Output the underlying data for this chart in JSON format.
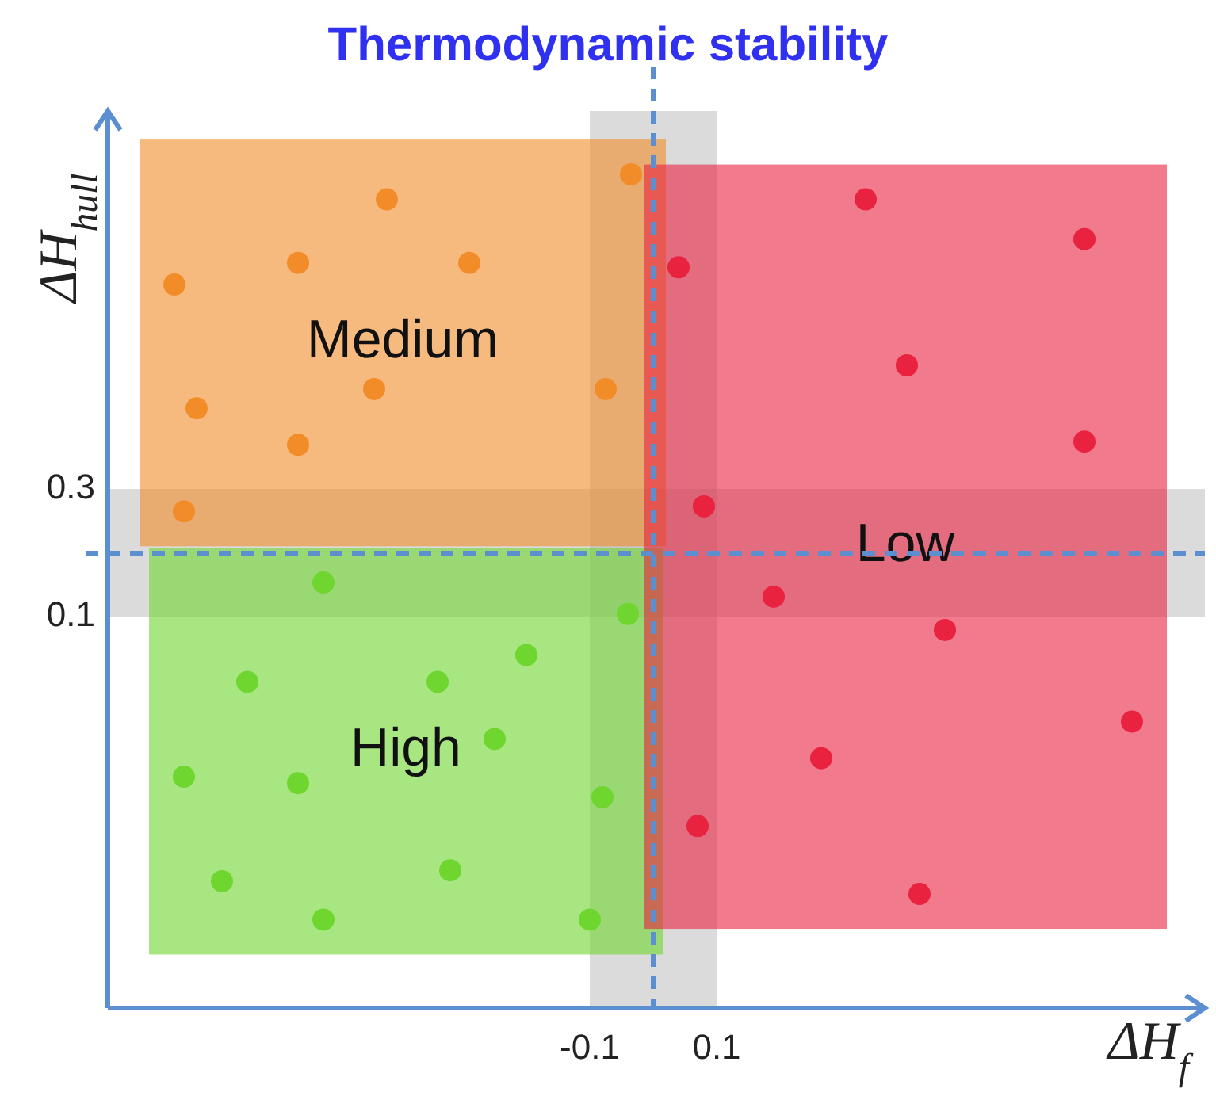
{
  "chart_data": {
    "type": "scatter",
    "title": "Thermodynamic stability",
    "xlabel": "ΔH$_{f}$",
    "ylabel": "ΔH$_{hull}$",
    "xlim": [
      -0.86,
      0.87
    ],
    "ylim": [
      -0.51,
      0.89
    ],
    "xticks": [
      -0.1,
      0.1
    ],
    "yticks": [
      0.3,
      0.1
    ],
    "grid": false,
    "marker": "circle",
    "series": [
      {
        "name": "Medium",
        "color": "#f28c28",
        "x": [
          -0.42,
          -0.56,
          -0.29,
          -0.755,
          -0.035,
          -0.075,
          -0.72,
          -0.44,
          -0.56,
          -0.74
        ],
        "values": [
          0.752,
          0.653,
          0.653,
          0.619,
          0.791,
          0.456,
          0.426,
          0.456,
          0.369,
          0.265
        ]
      },
      {
        "name": "High",
        "color": "#6ed62e",
        "x": [
          -0.52,
          -0.2,
          -0.64,
          -0.34,
          -0.04,
          -0.25,
          -0.74,
          -0.56,
          -0.08,
          -0.68,
          -0.32,
          -0.52,
          -0.1
        ],
        "values": [
          0.154,
          0.041,
          -0.001,
          -0.001,
          0.105,
          -0.09,
          -0.149,
          -0.159,
          -0.181,
          -0.312,
          -0.295,
          -0.372,
          -0.372
        ]
      },
      {
        "name": "Low",
        "color": "#e8223f",
        "x": [
          0.335,
          0.68,
          0.04,
          0.4,
          0.68,
          0.08,
          0.19,
          0.46,
          0.755,
          0.265,
          0.07,
          0.42
        ],
        "values": [
          0.752,
          0.69,
          0.646,
          0.493,
          0.374,
          0.273,
          0.132,
          0.08,
          -0.063,
          -0.12,
          -0.226,
          -0.332
        ]
      }
    ],
    "bands": [
      {
        "axis": "x",
        "from": -0.1,
        "to": 0.1,
        "color": "#b0b0b0"
      },
      {
        "axis": "y",
        "from": 0.1,
        "to": 0.3,
        "color": "#b0b0b0"
      }
    ],
    "ref_lines": [
      {
        "axis": "x",
        "value": 0,
        "color": "#5b8fd0",
        "line_style": "dashed"
      },
      {
        "axis": "y",
        "value": 0.2,
        "color": "#5b8fd0",
        "line_style": "dashed"
      }
    ]
  }
}
